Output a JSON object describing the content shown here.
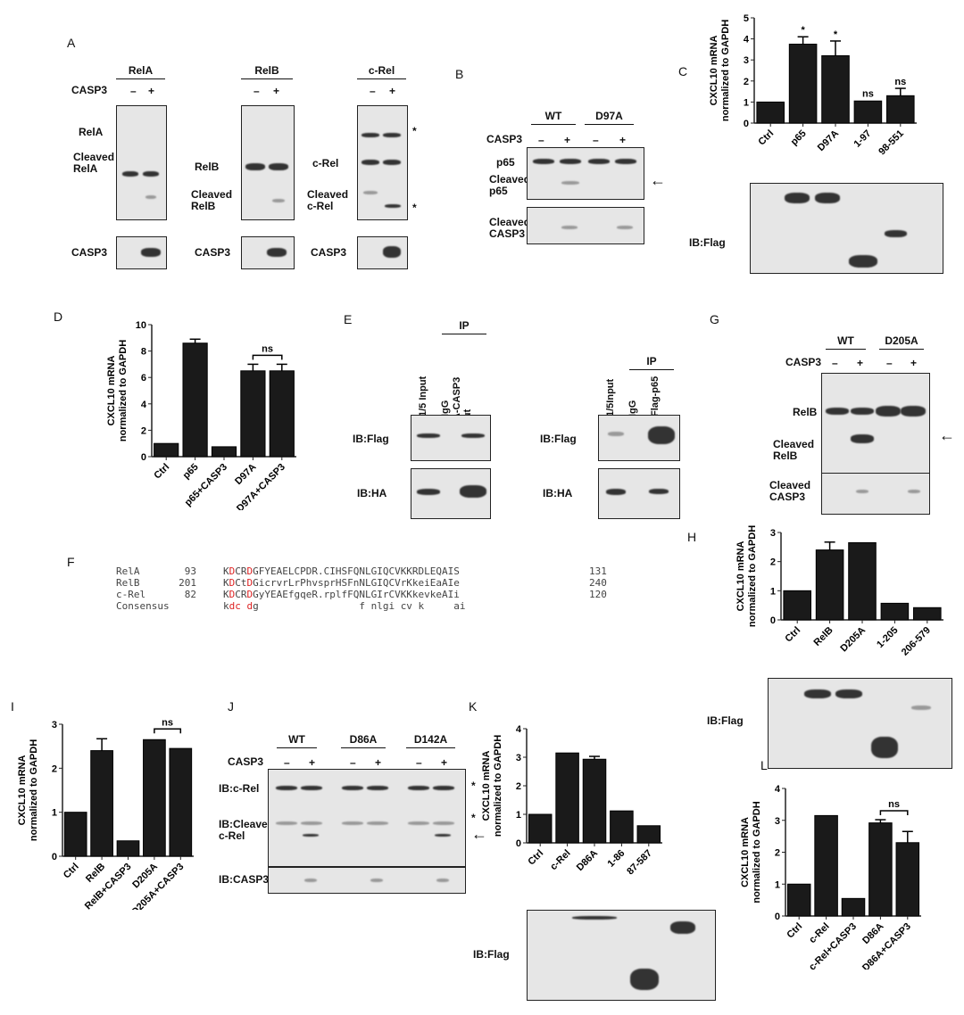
{
  "panels": {
    "A": "A",
    "B": "B",
    "C": "C",
    "D": "D",
    "E": "E",
    "F": "F",
    "G": "G",
    "H": "H",
    "I": "I",
    "J": "J",
    "K": "K",
    "L": "L"
  },
  "panelA": {
    "casp3": "CASP3",
    "minus": "–",
    "plus": "+",
    "relA": {
      "header": "RelA",
      "band1": "RelA",
      "band2": "Cleaved RelA",
      "bottom": "CASP3"
    },
    "relB": {
      "header": "RelB",
      "band1": "RelB",
      "band2": "Cleaved RelB",
      "bottom": "CASP3"
    },
    "cRel": {
      "header": "c-Rel",
      "band1": "c-Rel",
      "band2": "Cleaved c-Rel",
      "bottom": "CASP3",
      "asterisk": "*"
    }
  },
  "panelB": {
    "wt": "WT",
    "mut": "D97A",
    "casp3": "CASP3",
    "band1": "p65",
    "band2": "Cleaved p65",
    "bottom": "Cleaved CASP3",
    "arrow": "←"
  },
  "panelC": {
    "ib": "IB:Flag"
  },
  "panelE": {
    "ip": "IP",
    "left": {
      "lanes": [
        "1/5 Input",
        "IgG",
        "HA-CASP3 mut"
      ],
      "ib1": "IB:Flag",
      "ib2": "IB:HA"
    },
    "right": {
      "lanes": [
        "1/5Input",
        "IgG",
        "Flag-p65"
      ],
      "ib1": "IB:Flag",
      "ib2": "IB:HA"
    }
  },
  "panelG": {
    "wt": "WT",
    "mut": "D205A",
    "casp3": "CASP3",
    "band1": "RelB",
    "band2": "Cleaved RelB",
    "bottom": "Cleaved CASP3",
    "arrow": "←"
  },
  "panelF": {
    "rows": [
      {
        "name": "RelA",
        "start": "93",
        "pre": "K",
        "d1": "D",
        "mid": "CR",
        "d2": "D",
        "rest": "GFYEAELCPDR.CIHSFQNLGIQCVKKRDLEQAIS",
        "end": "131"
      },
      {
        "name": "RelB",
        "start": "201",
        "pre": "K",
        "d1": "D",
        "mid": "Ct",
        "d2": "D",
        "rest": "GicrvrLrPhvsprHSFnNLGIQCVrKkeiEaAIe",
        "end": "240"
      },
      {
        "name": "c-Rel",
        "start": "82",
        "pre": "K",
        "d1": "D",
        "mid": "CR",
        "d2": "D",
        "rest": "GyYEAEfgqeR.rplfFQNLGIrCVKKkevkeAIi",
        "end": "120"
      },
      {
        "name": "Consensus",
        "start": "",
        "pre": "k",
        "d1": "dc",
        "mid": " ",
        "d2": "d",
        "rest": "g                 f nlgi cv k     ai",
        "end": ""
      }
    ]
  },
  "panelH": {
    "ib": "IB:Flag"
  },
  "panelJ": {
    "wt": "WT",
    "m1": "D86A",
    "m2": "D142A",
    "casp3": "CASP3",
    "band1": "IB:c-Rel",
    "band2": "IB:Cleaved c-Rel",
    "bottom": "IB:CASP3",
    "asterisk": "*",
    "arrow": "←"
  },
  "panelK": {
    "ib": "IB:Flag"
  },
  "chart_data": [
    {
      "id": "C",
      "type": "bar",
      "ylabel": "CXCL10 mRNA normalized to GAPDH",
      "ylim": [
        0,
        5
      ],
      "yticks": [
        0,
        1,
        2,
        3,
        4,
        5
      ],
      "categories": [
        "Ctrl",
        "p65",
        "D97A",
        "1-97",
        "98-551"
      ],
      "values": [
        1,
        3.75,
        3.2,
        1.05,
        1.3
      ],
      "errors": [
        0,
        0.35,
        0.7,
        0.03,
        0.35
      ],
      "annotations": [
        "",
        "*",
        "*",
        "ns",
        "ns"
      ],
      "bracket": null,
      "color": "#1a1a1a"
    },
    {
      "id": "D",
      "type": "bar",
      "ylabel": "CXCL10 mRNA normalized to GAPDH",
      "ylim": [
        0,
        10
      ],
      "yticks": [
        0,
        2,
        4,
        6,
        8,
        10
      ],
      "categories": [
        "Ctrl",
        "p65",
        "p65+CASP3",
        "D97A",
        "D97A+CASP3"
      ],
      "values": [
        1,
        8.6,
        0.75,
        6.5,
        6.5
      ],
      "errors": [
        0,
        0.3,
        0,
        0.5,
        0.5
      ],
      "annotations": [
        "",
        "",
        "",
        "",
        ""
      ],
      "bracket": {
        "from": 3,
        "to": 4,
        "label": "ns"
      },
      "color": "#1a1a1a"
    },
    {
      "id": "H",
      "type": "bar",
      "ylabel": "CXCL10 mRNA normalized to GAPDH",
      "ylim": [
        0,
        3
      ],
      "yticks": [
        0,
        1,
        2,
        3
      ],
      "categories": [
        "Ctrl",
        "RelB",
        "D205A",
        "1-205",
        "206-579"
      ],
      "values": [
        1,
        2.4,
        2.65,
        0.57,
        0.42
      ],
      "errors": [
        0,
        0.27,
        0.03,
        0,
        0
      ],
      "annotations": [
        "",
        "",
        "",
        "",
        ""
      ],
      "bracket": null,
      "color": "#1a1a1a"
    },
    {
      "id": "I",
      "type": "bar",
      "ylabel": "CXCL10 mRNA normalized to GAPDH",
      "ylim": [
        0,
        3
      ],
      "yticks": [
        0,
        1,
        2,
        3
      ],
      "categories": [
        "Ctrl",
        "RelB",
        "RelB+CASP3",
        "D205A",
        "D205A+CASP3"
      ],
      "values": [
        1,
        2.4,
        0.35,
        2.65,
        2.45
      ],
      "errors": [
        0,
        0.27,
        0,
        0.04,
        0
      ],
      "annotations": [
        "",
        "",
        "",
        "",
        ""
      ],
      "bracket": {
        "from": 3,
        "to": 4,
        "label": "ns"
      },
      "color": "#1a1a1a"
    },
    {
      "id": "K",
      "type": "bar",
      "ylabel": "CXCL10 mRNA normalized to GAPDH",
      "ylim": [
        0,
        4
      ],
      "yticks": [
        0,
        1,
        2,
        3,
        4
      ],
      "categories": [
        "Ctrl",
        "c-Rel",
        "D86A",
        "1-86",
        "87-587"
      ],
      "values": [
        1,
        3.15,
        2.93,
        1.12,
        0.6
      ],
      "errors": [
        0,
        0.04,
        0.1,
        0,
        0
      ],
      "annotations": [
        "",
        "",
        "",
        "",
        ""
      ],
      "bracket": null,
      "color": "#1a1a1a"
    },
    {
      "id": "L",
      "type": "bar",
      "ylabel": "CXCL10 mRNA normalized to GAPDH",
      "ylim": [
        0,
        4
      ],
      "yticks": [
        0,
        1,
        2,
        3,
        4
      ],
      "categories": [
        "Ctrl",
        "c-Rel",
        "c-Rel+CASP3",
        "D86A",
        "D86A+CASP3"
      ],
      "values": [
        1,
        3.15,
        0.55,
        2.92,
        2.3
      ],
      "errors": [
        0,
        0.03,
        0,
        0.1,
        0.35
      ],
      "annotations": [
        "",
        "",
        "",
        "",
        ""
      ],
      "bracket": {
        "from": 3,
        "to": 4,
        "label": "ns"
      },
      "color": "#1a1a1a"
    }
  ]
}
